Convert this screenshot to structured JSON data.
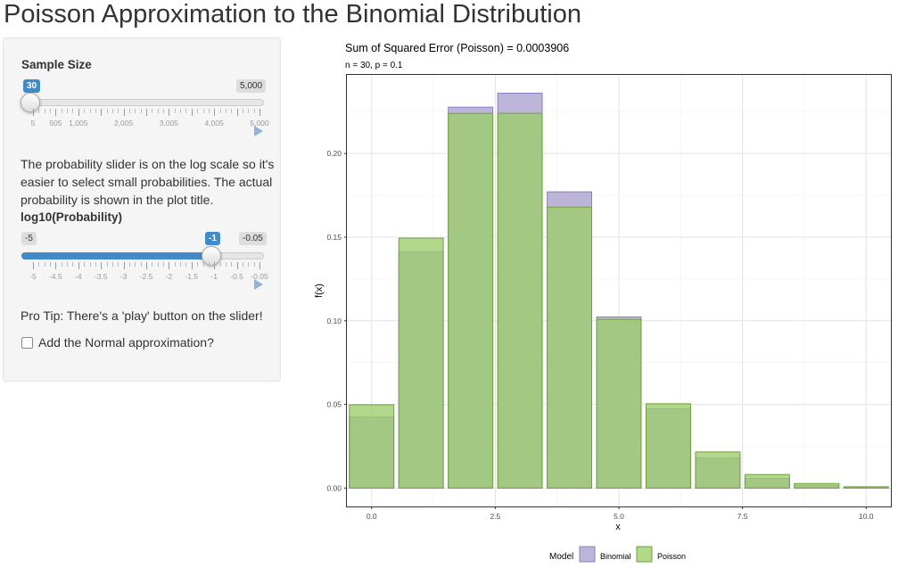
{
  "title": "Poisson Approximation to the Binomial Distribution",
  "sidebar": {
    "sample_size_label": "Sample Size",
    "sample_size_value": "30",
    "sample_size_max": "5,000",
    "sample_size_ticks": [
      "5",
      "505",
      "1,005",
      "2,005",
      "3,005",
      "4,005",
      "5,000"
    ],
    "description": "The probability slider is on the log scale so it's easier to select small probabilities. The actual probability is shown in the plot title.",
    "prob_label": "log10(Probability)",
    "prob_min": "-5",
    "prob_value": "-1",
    "prob_max": "-0.05",
    "prob_ticks": [
      "-5",
      "-4.5",
      "-4",
      "-3.5",
      "-3",
      "-2.5",
      "-2",
      "-1.5",
      "-1",
      "-0.5",
      "-0.05"
    ],
    "pro_tip": "Pro Tip: There's a 'play' button on the slider!",
    "normal_checkbox_label": "Add the Normal approximation?",
    "normal_checked": false
  },
  "chart_data": {
    "type": "bar",
    "title": "Sum of Squared Error (Poisson) = 0.0003906",
    "subtitle": "n = 30, p = 0.1",
    "xlabel": "x",
    "ylabel": "f(x)",
    "x": [
      0,
      1,
      2,
      3,
      4,
      5,
      6,
      7,
      8,
      9,
      10
    ],
    "xlim": [
      -0.5,
      10.5
    ],
    "ylim": [
      -0.011,
      0.247
    ],
    "x_ticks": [
      "0.0",
      "2.5",
      "5.0",
      "7.5",
      "10.0"
    ],
    "y_ticks": [
      "0.00",
      "0.05",
      "0.10",
      "0.15",
      "0.20"
    ],
    "legend_title": "Model",
    "legend_position": "bottom",
    "series": [
      {
        "name": "Binomial",
        "color": "#bcb5d9",
        "values": [
          0.0424,
          0.1413,
          0.2277,
          0.2361,
          0.1771,
          0.1023,
          0.0474,
          0.018,
          0.0058,
          0.0016,
          0.0004
        ]
      },
      {
        "name": "Poisson",
        "color": "#b2d88a",
        "values": [
          0.0498,
          0.1494,
          0.224,
          0.224,
          0.168,
          0.1008,
          0.0504,
          0.0216,
          0.0081,
          0.0027,
          0.0008
        ]
      }
    ]
  }
}
